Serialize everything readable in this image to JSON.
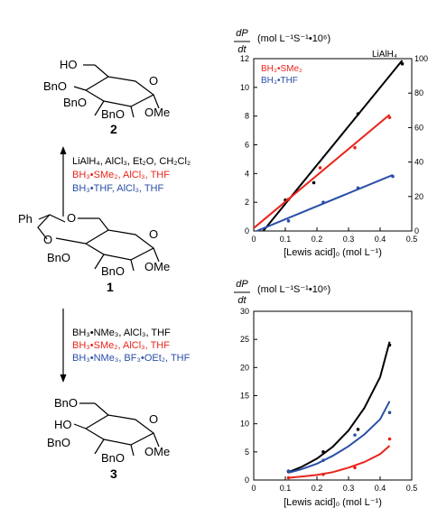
{
  "scheme": {
    "compounds": {
      "top": {
        "number": "2",
        "groups": [
          "HO",
          "BnO",
          "BnO",
          "BnO",
          "OMe"
        ]
      },
      "middle": {
        "number": "1",
        "groups": [
          "Ph",
          "O",
          "O",
          "BnO",
          "BnO",
          "OMe"
        ]
      },
      "bottom": {
        "number": "3",
        "groups": [
          "BnO",
          "HO",
          "BnO",
          "BnO",
          "OMe"
        ]
      }
    },
    "ring_oxygen": "O",
    "conditions_up": [
      {
        "text": "LiAlH₄, AlCl₃, Et₂O, CH₂Cl₂",
        "color": "#000000"
      },
      {
        "text": "BH₃•SMe₂, AlCl₃, THF",
        "color": "#e8241c"
      },
      {
        "text": "BH₃•THF, AlCl₃, THF",
        "color": "#2a4fa8"
      }
    ],
    "conditions_down": [
      {
        "text": "BH₃•NMe₃, AlCl₃, THF",
        "color": "#000000"
      },
      {
        "text": "BH₃•SMe₂, AlCl₃, THF",
        "color": "#e8241c"
      },
      {
        "text": "BH₃•NMe₃, BF₃•OEt₂, THF",
        "color": "#2a4fa8"
      }
    ]
  },
  "chart_data": [
    {
      "type": "scatter",
      "ylabel_top": "dP",
      "ylabel_bottom": "dt",
      "units": "(mol L⁻¹S⁻¹•10⁶)",
      "xlabel": "[Lewis acid]₀ (mol L⁻¹)",
      "xlim": [
        0,
        0.5
      ],
      "ylim": [
        0,
        12
      ],
      "xticks": [
        "0",
        "0.1",
        "0.2",
        "0.3",
        "0.4",
        "0.5"
      ],
      "yticks": [
        "0",
        "2",
        "4",
        "6",
        "8",
        "10",
        "12"
      ],
      "y2lim": [
        0,
        100
      ],
      "y2ticks": [
        "0",
        "20",
        "40",
        "60",
        "80",
        "100"
      ],
      "legend": [
        "BH₃•SMe₂",
        "BH₃•THF"
      ],
      "annotation": "LiAlH₄",
      "series": [
        {
          "name": "LiAlH₄",
          "color": "#000000",
          "axis": "right",
          "points": [
            [
              0.1,
              18
            ],
            [
              0.19,
              28
            ],
            [
              0.33,
              68
            ],
            [
              0.47,
              97
            ]
          ],
          "fit": [
            [
              0.03,
              0
            ],
            [
              0.47,
              99
            ]
          ]
        },
        {
          "name": "BH₃•SMe₂",
          "color": "#e8241c",
          "axis": "left",
          "points": [
            [
              0.11,
              2.2
            ],
            [
              0.21,
              4.4
            ],
            [
              0.32,
              5.8
            ],
            [
              0.43,
              7.9
            ]
          ],
          "fit": [
            [
              0,
              0.2
            ],
            [
              0.43,
              8.1
            ]
          ]
        },
        {
          "name": "BH₃•THF",
          "color": "#2a4fa8",
          "axis": "left",
          "points": [
            [
              0.11,
              0.7
            ],
            [
              0.22,
              2.0
            ],
            [
              0.33,
              3.0
            ],
            [
              0.44,
              3.8
            ]
          ],
          "fit": [
            [
              0.01,
              0
            ],
            [
              0.44,
              3.9
            ]
          ]
        }
      ]
    },
    {
      "type": "scatter",
      "ylabel_top": "dP",
      "ylabel_bottom": "dt",
      "units": "(mol L⁻¹S⁻¹•10⁶)",
      "xlabel": "[Lewis acid]₀ (mol L⁻¹)",
      "xlim": [
        0,
        0.5
      ],
      "ylim": [
        0,
        30
      ],
      "xticks": [
        "0",
        "0.1",
        "0.2",
        "0.3",
        "0.4",
        "0.5"
      ],
      "yticks": [
        "0",
        "5",
        "10",
        "15",
        "20",
        "25",
        "30"
      ],
      "series": [
        {
          "name": "BH₃•NMe₃ / AlCl₃",
          "color": "#000000",
          "points": [
            [
              0.11,
              1.5
            ],
            [
              0.22,
              5.0
            ],
            [
              0.33,
              9.0
            ],
            [
              0.43,
              24.0
            ]
          ],
          "fit": [
            [
              0.11,
              1.4
            ],
            [
              0.15,
              2.3
            ],
            [
              0.2,
              3.8
            ],
            [
              0.25,
              5.9
            ],
            [
              0.3,
              8.8
            ],
            [
              0.35,
              12.8
            ],
            [
              0.4,
              18.3
            ],
            [
              0.43,
              24.6
            ]
          ]
        },
        {
          "name": "BH₃•NMe₃ / BF₃•OEt₂",
          "color": "#2a4fa8",
          "points": [
            [
              0.11,
              1.6
            ],
            [
              0.22,
              3.5
            ],
            [
              0.32,
              8.0
            ],
            [
              0.43,
              12.0
            ]
          ],
          "fit": [
            [
              0.11,
              1.3
            ],
            [
              0.15,
              1.9
            ],
            [
              0.2,
              2.9
            ],
            [
              0.25,
              4.3
            ],
            [
              0.3,
              6.0
            ],
            [
              0.35,
              8.1
            ],
            [
              0.4,
              10.8
            ],
            [
              0.43,
              14.0
            ]
          ]
        },
        {
          "name": "BH₃•SMe₂ / AlCl₃",
          "color": "#e8241c",
          "points": [
            [
              0.11,
              0.4
            ],
            [
              0.22,
              1.0
            ],
            [
              0.32,
              2.2
            ],
            [
              0.43,
              7.3
            ]
          ],
          "fit": [
            [
              0.11,
              0.4
            ],
            [
              0.15,
              0.6
            ],
            [
              0.2,
              0.9
            ],
            [
              0.25,
              1.4
            ],
            [
              0.3,
              2.2
            ],
            [
              0.35,
              3.2
            ],
            [
              0.4,
              4.6
            ],
            [
              0.43,
              6.1
            ]
          ]
        }
      ]
    }
  ]
}
